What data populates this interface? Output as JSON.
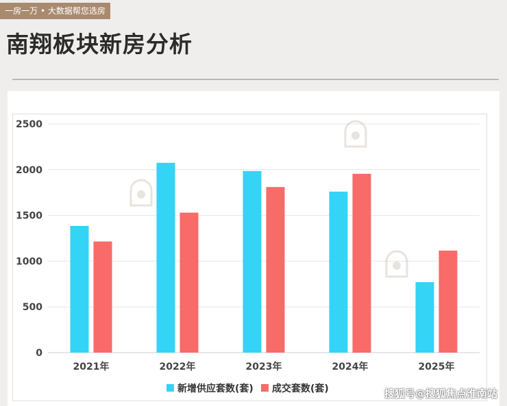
{
  "header": {
    "tag": "一房一万 • 大数据帮您选房",
    "title": "南翔板块新房分析"
  },
  "watermark": "搜狐号@搜狐焦点淮南站",
  "colors": {
    "supply": "#33d4f5",
    "deal": "#f86b68",
    "grid": "#e6e6e6",
    "tick": "#444444"
  },
  "chart_data": {
    "type": "bar",
    "categories": [
      "2021年",
      "2022年",
      "2023年",
      "2024年",
      "2025年"
    ],
    "series": [
      {
        "name": "新增供应套数(套)",
        "color": "#33d4f5",
        "values": [
          1385,
          2075,
          1985,
          1760,
          770
        ]
      },
      {
        "name": "成交套数(套)",
        "color": "#f86b68",
        "values": [
          1215,
          1530,
          1810,
          1955,
          1115
        ]
      }
    ],
    "yticks": [
      0,
      500,
      1000,
      1500,
      2000,
      2500
    ],
    "ylim": [
      0,
      2500
    ],
    "grid": true,
    "legend": "bottom-center"
  }
}
